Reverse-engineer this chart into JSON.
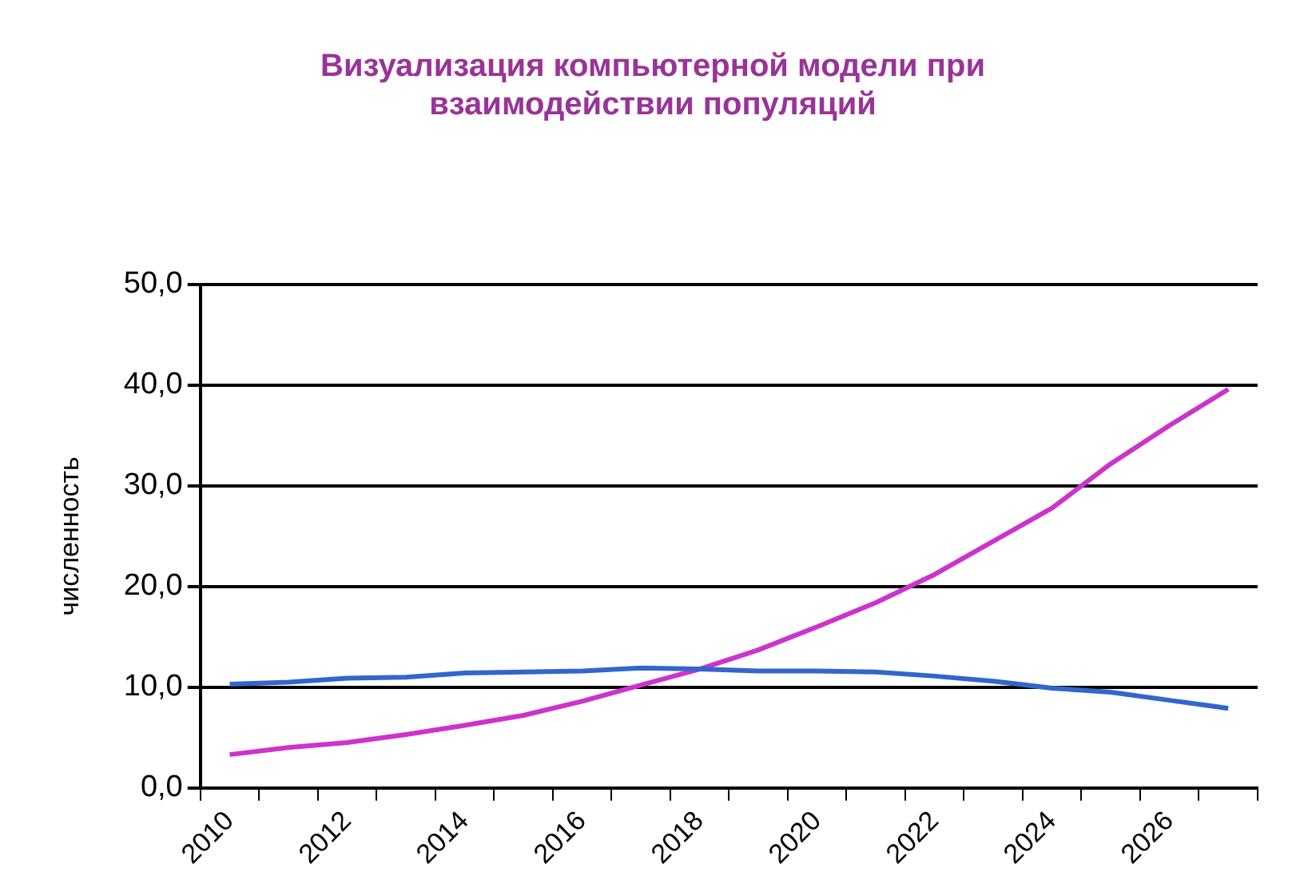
{
  "chart_data": {
    "type": "line",
    "title": "Визуализация компьютерной модели при взаимодействии популяций",
    "ylabel": "численность",
    "categories": [
      "2010",
      null,
      "2012",
      null,
      "2014",
      null,
      "2016",
      null,
      "2018",
      null,
      "2020",
      null,
      "2022",
      null,
      "2024",
      null,
      "2026",
      null
    ],
    "series": [
      {
        "color": "#3366cc",
        "values": [
          10.3,
          10.5,
          10.9,
          11.0,
          11.4,
          11.5,
          11.6,
          11.9,
          11.8,
          11.6,
          11.6,
          11.5,
          11.1,
          10.6,
          9.9,
          9.5,
          8.7,
          7.9
        ]
      },
      {
        "color": "#cc33cc",
        "values": [
          3.3,
          4.0,
          4.5,
          5.3,
          6.2,
          7.2,
          8.6,
          10.2,
          11.8,
          13.7,
          16.0,
          18.4,
          21.2,
          24.5,
          27.8,
          32.2,
          36.0,
          39.6
        ]
      }
    ],
    "ylim": [
      0,
      50
    ],
    "yticks": [
      {
        "value": 0,
        "label": "0,0"
      },
      {
        "value": 10,
        "label": "10,0"
      },
      {
        "value": 20,
        "label": "20,0"
      },
      {
        "value": 30,
        "label": "30,0"
      },
      {
        "value": 40,
        "label": "40,0"
      },
      {
        "value": 50,
        "label": "50,0"
      }
    ],
    "grid": "y",
    "legend": false,
    "marker": "none",
    "line_style": "solid"
  }
}
